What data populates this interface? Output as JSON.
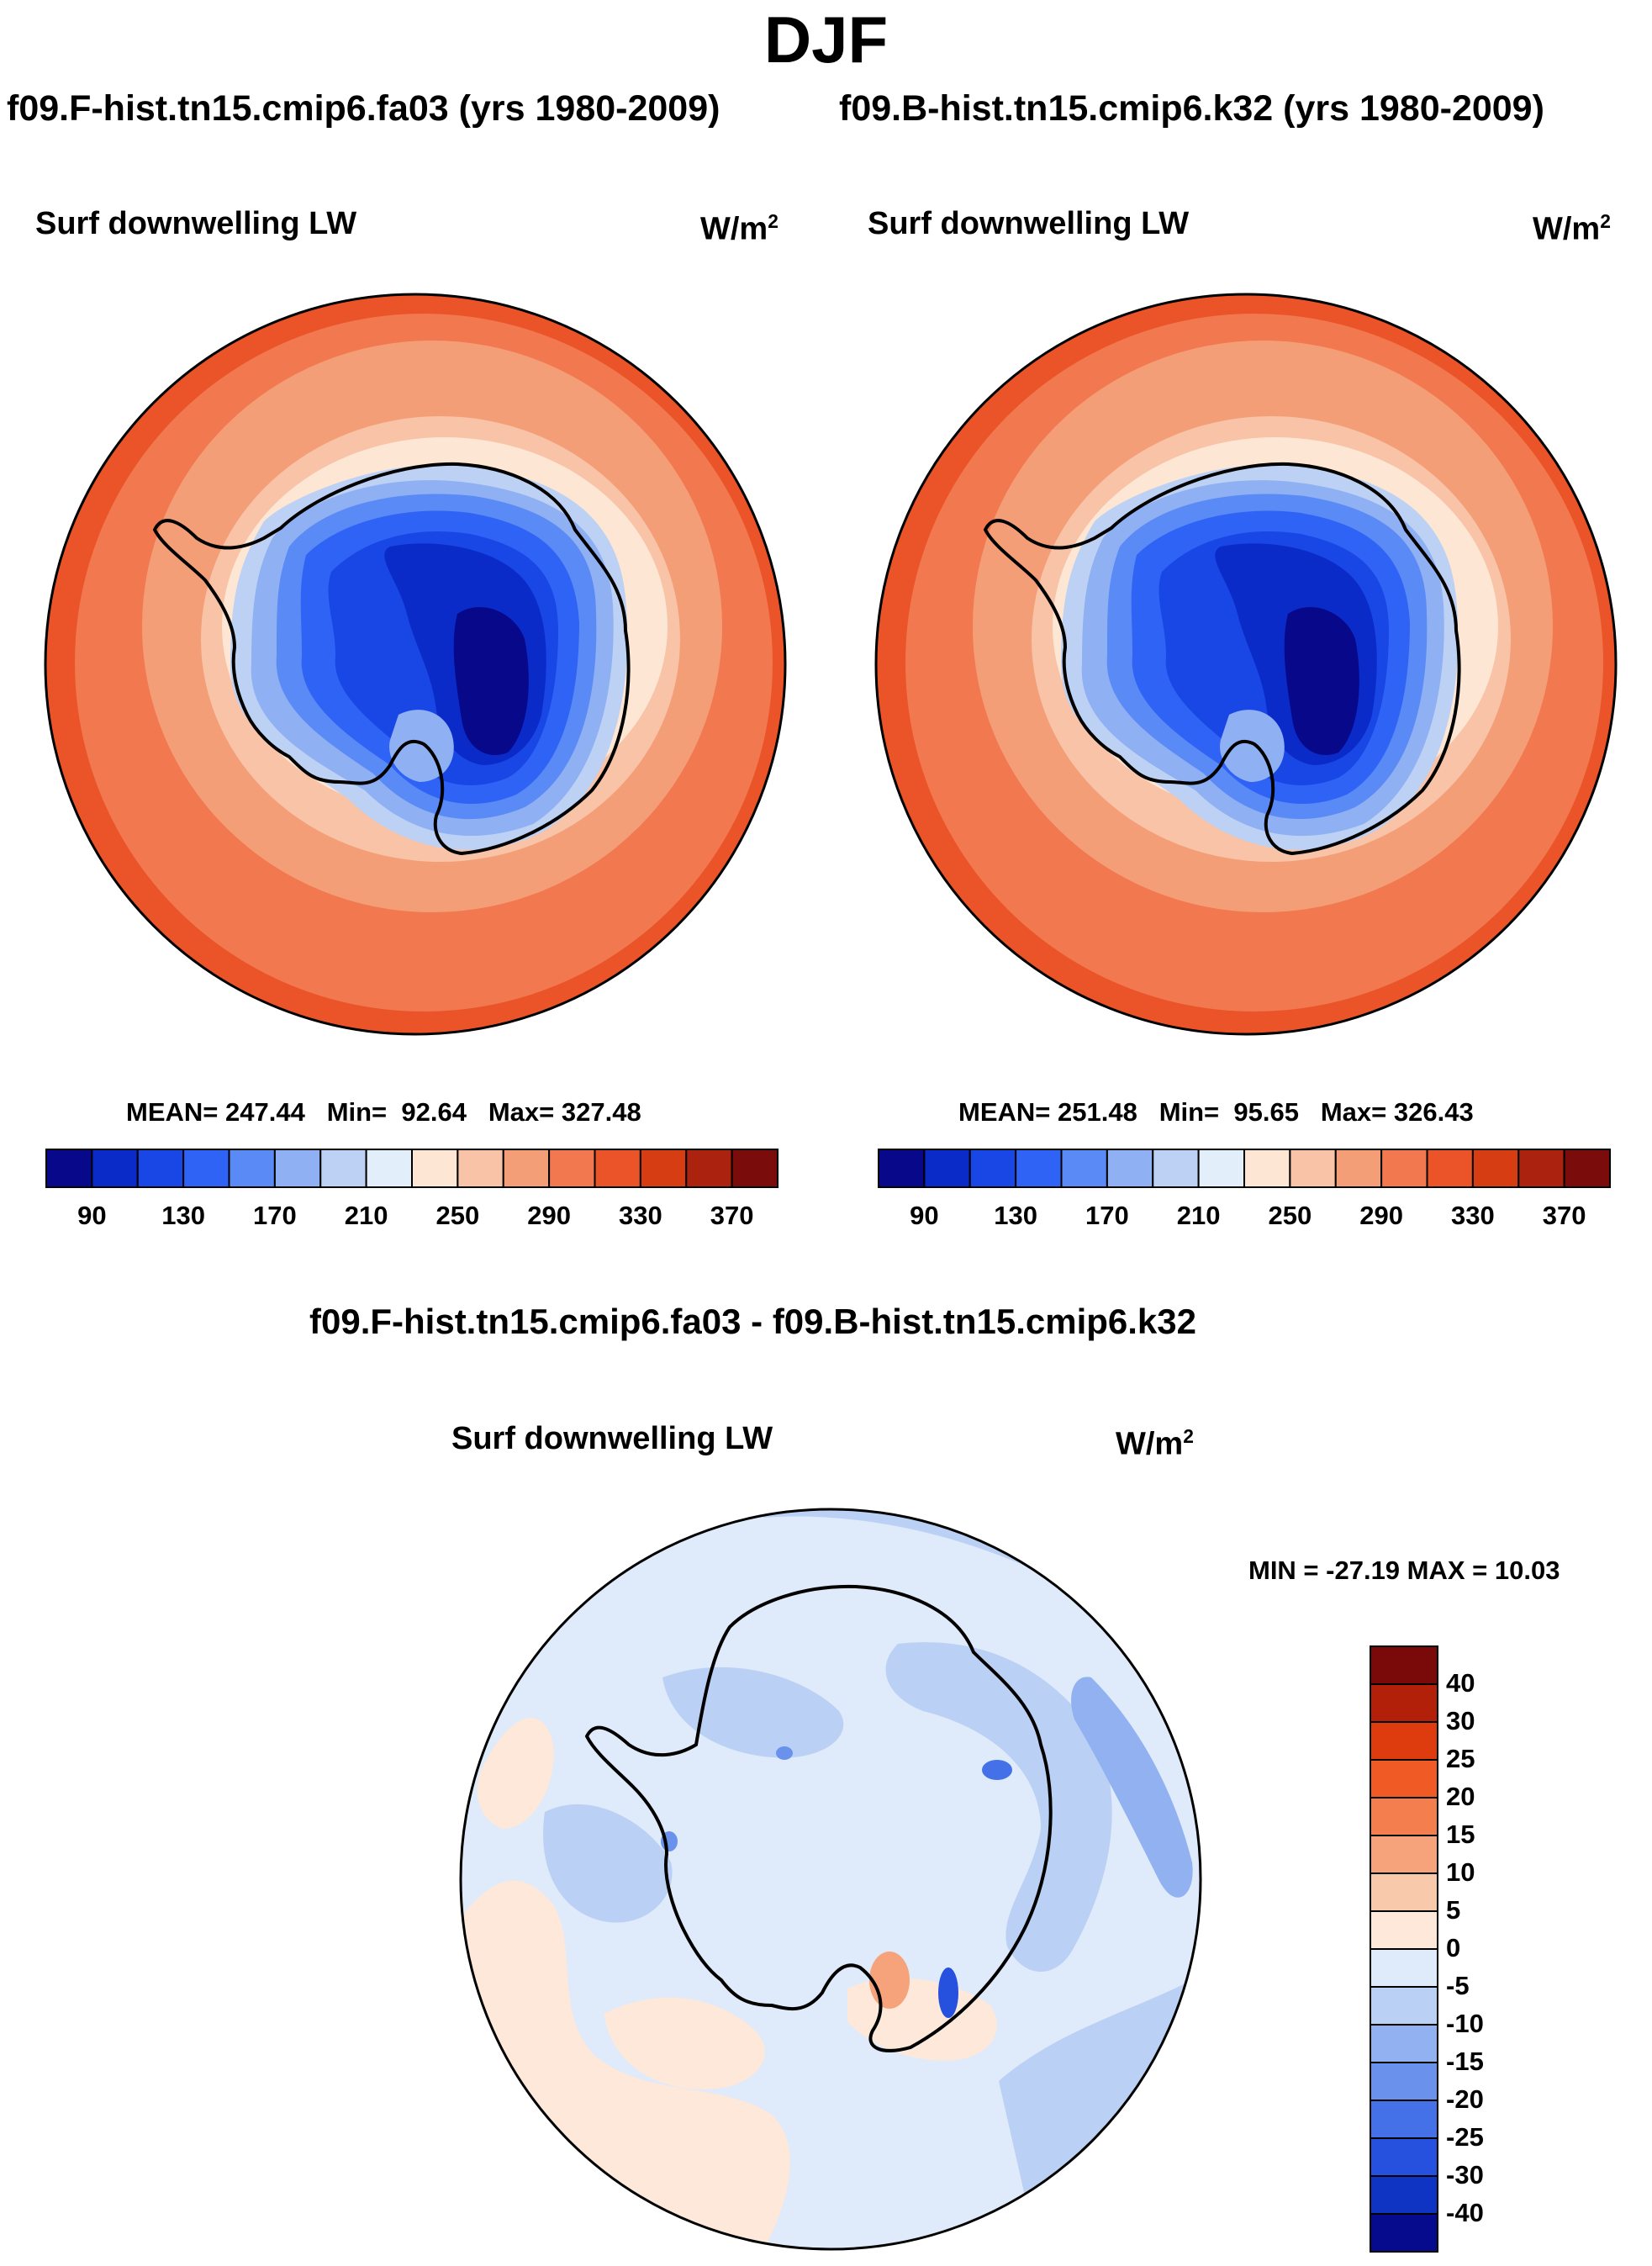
{
  "title": "DJF",
  "panel_left": {
    "header": "f09.F-hist.tn15.cmip6.fa03 (yrs 1980-2009)",
    "variable": "Surf downwelling LW",
    "units_base": "W/m",
    "units_exp": "2",
    "stats": {
      "mean_label": "MEAN=",
      "mean": "247.44",
      "min_label": "Min=",
      "min": "92.64",
      "max_label": "Max=",
      "max": "327.48"
    }
  },
  "panel_right": {
    "header": "f09.B-hist.tn15.cmip6.k32 (yrs 1980-2009)",
    "variable": "Surf downwelling LW",
    "units_base": "W/m",
    "units_exp": "2",
    "stats": {
      "mean_label": "MEAN=",
      "mean": "251.48",
      "min_label": "Min=",
      "min": "95.65",
      "max_label": "Max=",
      "max": "326.43"
    }
  },
  "panel_diff": {
    "header": "f09.F-hist.tn15.cmip6.fa03 - f09.B-hist.tn15.cmip6.k32",
    "variable": "Surf downwelling LW",
    "units_base": "W/m",
    "units_exp": "2",
    "minmax_text": "MIN = -27.19 MAX =  10.03"
  },
  "colorbar_main": {
    "colors": [
      "#08088a",
      "#0a2bc8",
      "#1847e6",
      "#2f63f5",
      "#5a8af5",
      "#8fb0f2",
      "#bcd1f4",
      "#e3eefb",
      "#fde6d4",
      "#f8c3a6",
      "#f49e78",
      "#f1784f",
      "#ea5428",
      "#d63d12",
      "#ab230e",
      "#7a0c0c"
    ],
    "tick_labels": [
      "90",
      "130",
      "170",
      "210",
      "250",
      "290",
      "330",
      "370"
    ]
  },
  "colorbar_diff": {
    "colors": [
      "#7a0a0a",
      "#b3200a",
      "#de3b0f",
      "#ef5a25",
      "#f57e4f",
      "#f6a27b",
      "#f9c9ac",
      "#fde8da",
      "#dfeafa",
      "#bad0f4",
      "#91b1f0",
      "#6a91ec",
      "#4471e8",
      "#2651df",
      "#0f33c2",
      "#060a8c"
    ],
    "tick_labels": [
      "40",
      "30",
      "25",
      "20",
      "15",
      "10",
      "5",
      "0",
      "-5",
      "-10",
      "-15",
      "-20",
      "-25",
      "-30",
      "-40"
    ]
  },
  "chart_data": [
    {
      "type": "heatmap",
      "title": "f09.F-hist.tn15.cmip6.fa03 (yrs 1980-2009)",
      "variable": "Surf downwelling LW",
      "units": "W/m2",
      "projection": "south polar stereographic",
      "levels": [
        90,
        110,
        130,
        150,
        170,
        190,
        210,
        230,
        250,
        270,
        290,
        310,
        330,
        350,
        370
      ],
      "mean": 247.44,
      "min": 92.64,
      "max": 327.48
    },
    {
      "type": "heatmap",
      "title": "f09.B-hist.tn15.cmip6.k32 (yrs 1980-2009)",
      "variable": "Surf downwelling LW",
      "units": "W/m2",
      "projection": "south polar stereographic",
      "levels": [
        90,
        110,
        130,
        150,
        170,
        190,
        210,
        230,
        250,
        270,
        290,
        310,
        330,
        350,
        370
      ],
      "mean": 251.48,
      "min": 95.65,
      "max": 326.43
    },
    {
      "type": "heatmap",
      "title": "f09.F-hist.tn15.cmip6.fa03 - f09.B-hist.tn15.cmip6.k32",
      "variable": "Surf downwelling LW",
      "units": "W/m2",
      "projection": "south polar stereographic",
      "levels": [
        -40,
        -30,
        -25,
        -20,
        -15,
        -10,
        -5,
        0,
        5,
        10,
        15,
        20,
        25,
        30,
        40
      ],
      "min": -27.19,
      "max": 10.03
    }
  ]
}
